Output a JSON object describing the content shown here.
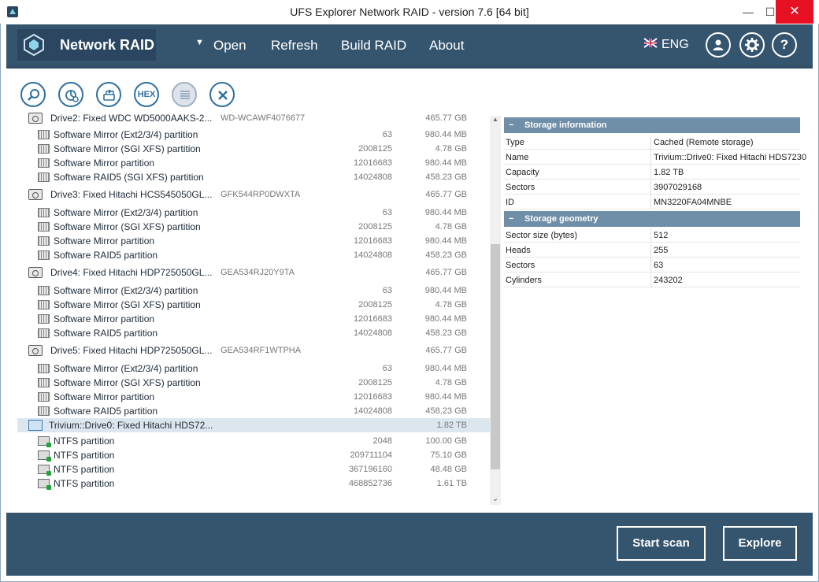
{
  "window": {
    "title": "UFS Explorer Network RAID - version 7.6 [64 bit]",
    "minimize": "—",
    "maximize": "☐",
    "close": "✕"
  },
  "header": {
    "app_name": "Network RAID",
    "menu_arrow": "▼",
    "menu": [
      "Open",
      "Refresh",
      "Build RAID",
      "About"
    ],
    "language": "ENG",
    "icons": [
      "user-icon",
      "gear-icon",
      "help-icon"
    ],
    "help_glyph": "?"
  },
  "toolbar": {
    "hex_label": "HEX",
    "icons": [
      "search-icon",
      "pie-chart-icon",
      "drive-copy-icon",
      "hex-icon",
      "list-icon",
      "close-icon"
    ]
  },
  "tree": {
    "partial_top": {
      "name": "Drive2: Fixed WDC WD5000AAKS-2...",
      "serial": "WD-WCAWF4076677",
      "size": "465.77 GB"
    },
    "drive2_partitions": [
      {
        "name": "Software Mirror (Ext2/3/4) partition",
        "start": "63",
        "size": "980.44 MB"
      },
      {
        "name": "Software Mirror (SGI XFS) partition",
        "start": "2008125",
        "size": "4.78 GB"
      },
      {
        "name": "Software Mirror partition",
        "start": "12016683",
        "size": "980.44 MB"
      },
      {
        "name": "Software RAID5 (SGI XFS) partition",
        "start": "14024808",
        "size": "458.23 GB"
      }
    ],
    "drive3": {
      "name": "Drive3: Fixed Hitachi HCS545050GL...",
      "serial": "GFK544RP0DWXTA",
      "size": "465.77 GB"
    },
    "drive3_partitions": [
      {
        "name": "Software Mirror (Ext2/3/4) partition",
        "start": "63",
        "size": "980.44 MB"
      },
      {
        "name": "Software Mirror (SGI XFS) partition",
        "start": "2008125",
        "size": "4.78 GB"
      },
      {
        "name": "Software Mirror partition",
        "start": "12016683",
        "size": "980.44 MB"
      },
      {
        "name": "Software RAID5 partition",
        "start": "14024808",
        "size": "458.23 GB"
      }
    ],
    "drive4": {
      "name": "Drive4: Fixed Hitachi HDP725050GL...",
      "serial": "GEA534RJ20Y9TA",
      "size": "465.77 GB"
    },
    "drive4_partitions": [
      {
        "name": "Software Mirror (Ext2/3/4) partition",
        "start": "63",
        "size": "980.44 MB"
      },
      {
        "name": "Software Mirror (SGI XFS) partition",
        "start": "2008125",
        "size": "4.78 GB"
      },
      {
        "name": "Software Mirror partition",
        "start": "12016683",
        "size": "980.44 MB"
      },
      {
        "name": "Software RAID5 partition",
        "start": "14024808",
        "size": "458.23 GB"
      }
    ],
    "drive5": {
      "name": "Drive5: Fixed Hitachi HDP725050GL...",
      "serial": "GEA534RF1WTPHA",
      "size": "465.77 GB"
    },
    "drive5_partitions": [
      {
        "name": "Software Mirror (Ext2/3/4) partition",
        "start": "63",
        "size": "980.44 MB"
      },
      {
        "name": "Software Mirror (SGI XFS) partition",
        "start": "2008125",
        "size": "4.78 GB"
      },
      {
        "name": "Software Mirror partition",
        "start": "12016683",
        "size": "980.44 MB"
      },
      {
        "name": "Software RAID5 partition",
        "start": "14024808",
        "size": "458.23 GB"
      }
    ],
    "trivium": {
      "name": "Trivium::Drive0: Fixed Hitachi HDS72...",
      "size": "1.82 TB"
    },
    "trivium_partitions": [
      {
        "name": "NTFS partition",
        "start": "2048",
        "size": "100.00 GB"
      },
      {
        "name": "NTFS partition",
        "start": "209711104",
        "size": "75.10 GB"
      },
      {
        "name": "NTFS partition",
        "start": "367196160",
        "size": "48.48 GB"
      },
      {
        "name": "NTFS partition",
        "start": "468852736",
        "size": "1.61 TB"
      }
    ]
  },
  "properties": {
    "storage_info_title": "Storage information",
    "storage_info": [
      {
        "k": "Type",
        "v": "Cached (Remote storage)"
      },
      {
        "k": "Name",
        "v": "Trivium::Drive0: Fixed Hitachi HDS7230"
      },
      {
        "k": "Capacity",
        "v": "1.82 TB"
      },
      {
        "k": "Sectors",
        "v": "3907029168"
      },
      {
        "k": "ID",
        "v": "MN3220FA04MNBE"
      }
    ],
    "storage_geometry_title": "Storage geometry",
    "storage_geometry": [
      {
        "k": "Sector size (bytes)",
        "v": "512"
      },
      {
        "k": "Heads",
        "v": "255"
      },
      {
        "k": "Sectors",
        "v": "63"
      },
      {
        "k": "Cylinders",
        "v": "243202"
      }
    ],
    "collapse_glyph": "−"
  },
  "footer": {
    "start_scan": "Start scan",
    "explore": "Explore"
  }
}
